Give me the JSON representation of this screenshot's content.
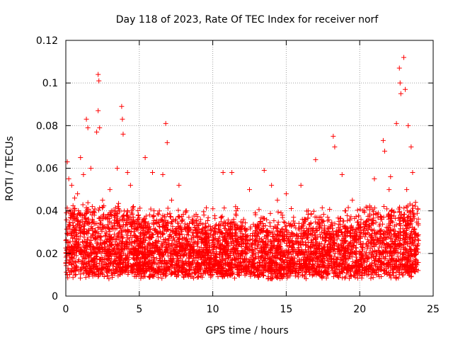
{
  "chart_data": {
    "type": "scatter",
    "title": "Day 118 of 2023, Rate Of TEC Index for receiver norf",
    "xlabel": "GPS time / hours",
    "ylabel": "ROTI / TECUs",
    "xlim": [
      0,
      25
    ],
    "ylim": [
      0,
      0.12
    ],
    "xticks": [
      0,
      5,
      10,
      15,
      20,
      25
    ],
    "xtick_labels": [
      "0",
      "5",
      "10",
      "15",
      "20",
      "25"
    ],
    "yticks": [
      0,
      0.02,
      0.04,
      0.06,
      0.08,
      0.1,
      0.12
    ],
    "ytick_labels": [
      "0",
      "0.02",
      "0.04",
      "0.06",
      "0.08",
      "0.1",
      "0.12"
    ],
    "grid": true,
    "marker": "plus",
    "color": "#ff0000",
    "series": [
      {
        "points": [
          [
            0.1,
            0.063
          ],
          [
            0.2,
            0.055
          ],
          [
            0.4,
            0.052
          ],
          [
            0.6,
            0.046
          ],
          [
            0.8,
            0.048
          ],
          [
            1.0,
            0.065
          ],
          [
            1.2,
            0.057
          ],
          [
            1.4,
            0.083
          ],
          [
            1.5,
            0.079
          ],
          [
            1.7,
            0.06
          ],
          [
            2.1,
            0.077
          ],
          [
            2.2,
            0.104
          ],
          [
            2.25,
            0.101
          ],
          [
            2.2,
            0.087
          ],
          [
            2.3,
            0.079
          ],
          [
            3.0,
            0.05
          ],
          [
            3.5,
            0.06
          ],
          [
            3.8,
            0.089
          ],
          [
            3.85,
            0.083
          ],
          [
            3.9,
            0.076
          ],
          [
            4.2,
            0.058
          ],
          [
            4.4,
            0.052
          ],
          [
            5.4,
            0.065
          ],
          [
            5.9,
            0.058
          ],
          [
            6.6,
            0.057
          ],
          [
            6.8,
            0.081
          ],
          [
            6.9,
            0.072
          ],
          [
            7.7,
            0.052
          ],
          [
            8.2,
            0.04
          ],
          [
            9.4,
            0.038
          ],
          [
            10.7,
            0.058
          ],
          [
            11.3,
            0.058
          ],
          [
            12.5,
            0.05
          ],
          [
            13.5,
            0.059
          ],
          [
            14.0,
            0.052
          ],
          [
            14.4,
            0.045
          ],
          [
            15.0,
            0.048
          ],
          [
            16.0,
            0.052
          ],
          [
            17.0,
            0.064
          ],
          [
            18.2,
            0.075
          ],
          [
            18.3,
            0.07
          ],
          [
            18.8,
            0.057
          ],
          [
            19.5,
            0.045
          ],
          [
            20.3,
            0.04
          ],
          [
            21.0,
            0.055
          ],
          [
            21.6,
            0.073
          ],
          [
            21.7,
            0.068
          ],
          [
            22.1,
            0.056
          ],
          [
            22.5,
            0.081
          ],
          [
            22.7,
            0.107
          ],
          [
            22.75,
            0.1
          ],
          [
            22.8,
            0.095
          ],
          [
            23.0,
            0.112
          ],
          [
            23.1,
            0.097
          ],
          [
            23.3,
            0.08
          ],
          [
            23.5,
            0.07
          ],
          [
            23.6,
            0.058
          ],
          [
            23.8,
            0.044
          ],
          [
            0.5,
            0.038
          ],
          [
            1.8,
            0.042
          ],
          [
            2.5,
            0.045
          ],
          [
            3.2,
            0.04
          ],
          [
            4.6,
            0.042
          ],
          [
            5.2,
            0.035
          ],
          [
            6.0,
            0.04
          ],
          [
            7.2,
            0.045
          ],
          [
            8.6,
            0.035
          ],
          [
            9.0,
            0.03
          ],
          [
            10.2,
            0.033
          ],
          [
            11.6,
            0.04
          ],
          [
            12.1,
            0.036
          ],
          [
            13.0,
            0.032
          ],
          [
            15.5,
            0.037
          ],
          [
            16.5,
            0.04
          ],
          [
            17.5,
            0.035
          ],
          [
            19.0,
            0.04
          ],
          [
            20.0,
            0.032
          ],
          [
            20.8,
            0.034
          ],
          [
            22.0,
            0.05
          ],
          [
            23.2,
            0.05
          ]
        ]
      }
    ]
  }
}
